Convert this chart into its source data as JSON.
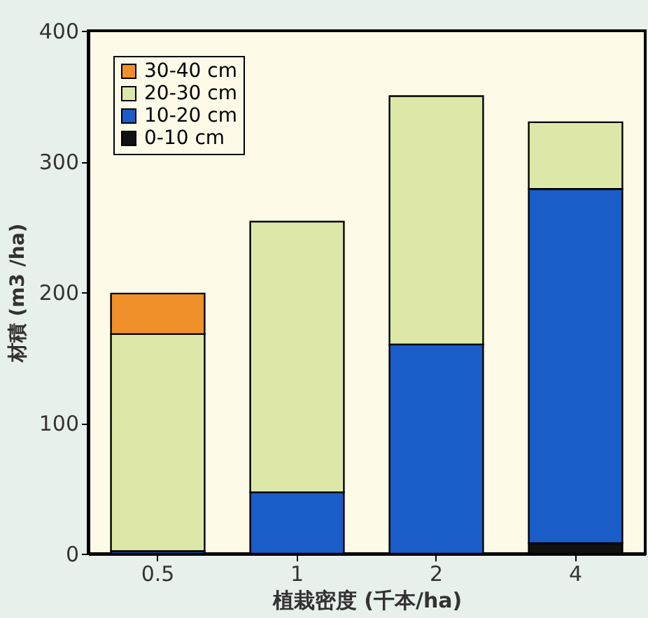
{
  "chart_data": {
    "type": "bar",
    "stacked": true,
    "xlabel": "植栽密度 (千本/ha)",
    "ylabel": "材積 (m3 /ha)",
    "categories": [
      "0.5",
      "1",
      "2",
      "4"
    ],
    "series": [
      {
        "name": "0-10 cm",
        "color": "#111111",
        "values": [
          null,
          null,
          null,
          8
        ]
      },
      {
        "name": "10-20 cm",
        "color": "#1a5cc8",
        "values": [
          2,
          47,
          160,
          271
        ]
      },
      {
        "name": "20-30 cm",
        "color": "#dde8a8",
        "values": [
          166,
          207,
          190,
          51
        ]
      },
      {
        "name": "30-40 cm",
        "color": "#f0902a",
        "values": [
          31,
          null,
          null,
          null
        ]
      }
    ],
    "ylim": [
      0,
      400
    ],
    "yticks": [
      0,
      100,
      200,
      300,
      400
    ],
    "grid": false,
    "legend": "top left"
  }
}
